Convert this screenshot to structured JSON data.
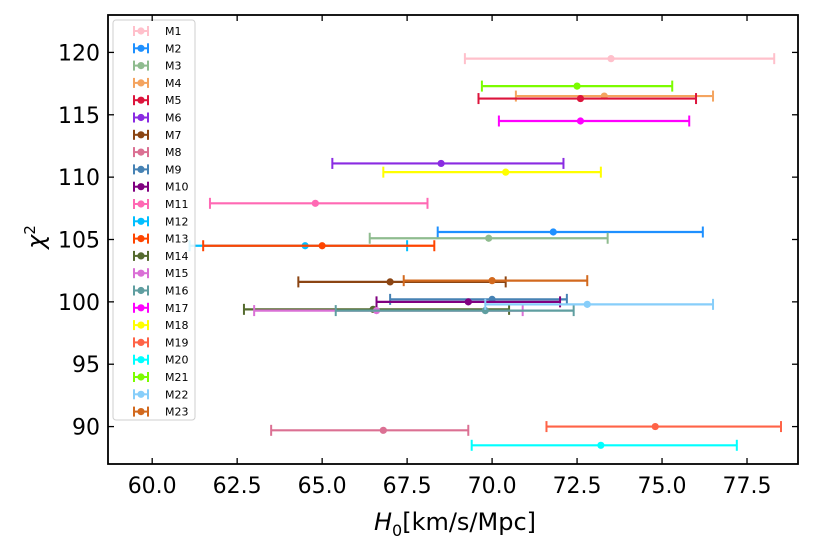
{
  "chart_data": {
    "type": "scatter",
    "subtype": "horizontal-errorbar",
    "title": "",
    "xlabel": "H_0[km/s/Mpc]",
    "xlabel_symbol": "H",
    "xlabel_subscript": "0",
    "xlabel_unit": "[km/s/Mpc]",
    "ylabel": "χ²",
    "ylabel_symbol": "χ",
    "ylabel_superscript": "2",
    "xlim": [
      58.7,
      79.0
    ],
    "ylim": [
      87.0,
      123.0
    ],
    "x_ticks": [
      "60.0",
      "62.5",
      "65.0",
      "67.5",
      "70.0",
      "72.5",
      "75.0",
      "77.5"
    ],
    "y_ticks": [
      "90",
      "95",
      "100",
      "105",
      "110",
      "115",
      "120"
    ],
    "x_tick_values": [
      60.0,
      62.5,
      65.0,
      67.5,
      70.0,
      72.5,
      75.0,
      77.5
    ],
    "y_tick_values": [
      90,
      95,
      100,
      105,
      110,
      115,
      120
    ],
    "grid": false,
    "legend_position": "top-left",
    "series": [
      {
        "name": "M1",
        "color": "#ffc0cb",
        "h0": 73.5,
        "xmin": 69.2,
        "xmax": 78.3,
        "chi2": 119.5
      },
      {
        "name": "M2",
        "color": "#1e90ff",
        "h0": 71.8,
        "xmin": 68.4,
        "xmax": 76.2,
        "chi2": 105.6
      },
      {
        "name": "M3",
        "color": "#8fbc8f",
        "h0": 69.9,
        "xmin": 66.4,
        "xmax": 73.4,
        "chi2": 105.1
      },
      {
        "name": "M4",
        "color": "#f4a460",
        "h0": 73.3,
        "xmin": 70.7,
        "xmax": 76.5,
        "chi2": 116.5
      },
      {
        "name": "M5",
        "color": "#dc143c",
        "h0": 72.6,
        "xmin": 69.6,
        "xmax": 76.0,
        "chi2": 116.3
      },
      {
        "name": "M6",
        "color": "#8a2be2",
        "h0": 68.5,
        "xmin": 65.3,
        "xmax": 72.1,
        "chi2": 111.1
      },
      {
        "name": "M7",
        "color": "#8b4513",
        "h0": 67.0,
        "xmin": 64.3,
        "xmax": 70.4,
        "chi2": 101.6
      },
      {
        "name": "M8",
        "color": "#db7093",
        "h0": 66.8,
        "xmin": 63.5,
        "xmax": 69.3,
        "chi2": 89.7
      },
      {
        "name": "M9",
        "color": "#4682b4",
        "h0": 70.0,
        "xmin": 67.0,
        "xmax": 72.2,
        "chi2": 100.2
      },
      {
        "name": "M10",
        "color": "#800080",
        "h0": 69.3,
        "xmin": 66.6,
        "xmax": 72.0,
        "chi2": 100.0
      },
      {
        "name": "M11",
        "color": "#ff69b4",
        "h0": 64.8,
        "xmin": 61.7,
        "xmax": 68.1,
        "chi2": 107.9
      },
      {
        "name": "M12",
        "color": "#00bfff",
        "h0": 64.5,
        "xmin": 61.1,
        "xmax": 67.5,
        "chi2": 104.5
      },
      {
        "name": "M13",
        "color": "#ff4500",
        "h0": 65.0,
        "xmin": 61.5,
        "xmax": 68.3,
        "chi2": 104.5
      },
      {
        "name": "M14",
        "color": "#556b2f",
        "h0": 66.5,
        "xmin": 62.7,
        "xmax": 70.5,
        "chi2": 99.4
      },
      {
        "name": "M15",
        "color": "#da70d6",
        "h0": 66.6,
        "xmin": 63.0,
        "xmax": 70.9,
        "chi2": 99.3
      },
      {
        "name": "M16",
        "color": "#5f9ea0",
        "h0": 69.8,
        "xmin": 65.4,
        "xmax": 72.4,
        "chi2": 99.3
      },
      {
        "name": "M17",
        "color": "#ff00ff",
        "h0": 72.6,
        "xmin": 70.2,
        "xmax": 75.8,
        "chi2": 114.5
      },
      {
        "name": "M18",
        "color": "#ffff00",
        "h0": 70.4,
        "xmin": 66.8,
        "xmax": 73.2,
        "chi2": 110.4
      },
      {
        "name": "M19",
        "color": "#ff6347",
        "h0": 74.8,
        "xmin": 71.6,
        "xmax": 78.5,
        "chi2": 90.0
      },
      {
        "name": "M20",
        "color": "#00ffff",
        "h0": 73.2,
        "xmin": 69.4,
        "xmax": 77.2,
        "chi2": 88.5
      },
      {
        "name": "M21",
        "color": "#7cfc00",
        "h0": 72.5,
        "xmin": 69.7,
        "xmax": 75.3,
        "chi2": 117.3
      },
      {
        "name": "M22",
        "color": "#87cefa",
        "h0": 72.8,
        "xmin": 69.8,
        "xmax": 76.5,
        "chi2": 99.8
      },
      {
        "name": "M23",
        "color": "#d2691e",
        "h0": 70.0,
        "xmin": 67.4,
        "xmax": 72.8,
        "chi2": 101.7
      }
    ]
  }
}
